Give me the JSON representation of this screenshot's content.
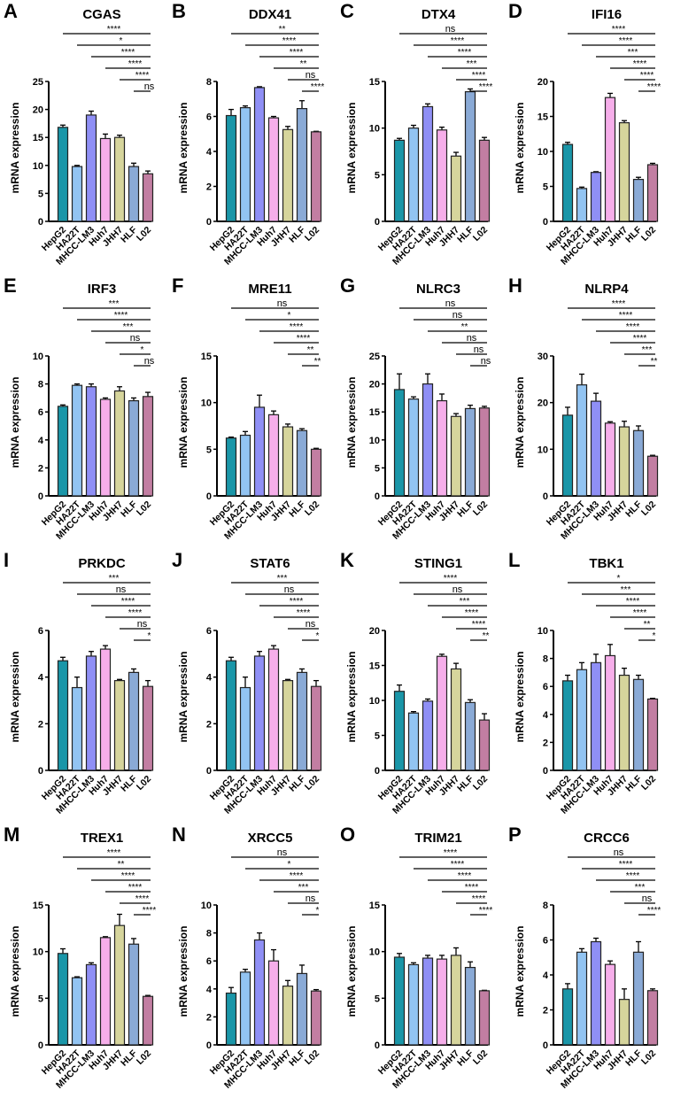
{
  "chart_data": [
    {
      "letter": "A",
      "title": "CGAS",
      "ylabel": "mRNA expression",
      "ymax": 25,
      "step": 5,
      "values": [
        16.8,
        9.8,
        19,
        14.8,
        15,
        9.8,
        8.5
      ],
      "errors": [
        0.4,
        0.2,
        0.7,
        0.8,
        0.4,
        0.6,
        0.5
      ],
      "sig": [
        "****",
        "*",
        "****",
        "****",
        "****",
        "ns"
      ]
    },
    {
      "letter": "B",
      "title": "DDX41",
      "ylabel": "mRNA expression",
      "ymax": 8,
      "step": 2,
      "values": [
        6.05,
        6.5,
        7.65,
        5.92,
        5.25,
        6.45,
        5.12
      ],
      "errors": [
        0.35,
        0.1,
        0.05,
        0.08,
        0.18,
        0.45,
        0.03
      ],
      "sig": [
        "**",
        "****",
        "****",
        "**",
        "ns",
        "****"
      ]
    },
    {
      "letter": "C",
      "title": "DTX4",
      "ylabel": "mRNA expression",
      "ymax": 15,
      "step": 5,
      "values": [
        8.7,
        10,
        12.3,
        9.8,
        7,
        13.9,
        8.7
      ],
      "errors": [
        0.2,
        0.3,
        0.3,
        0.3,
        0.4,
        0.3,
        0.3
      ],
      "sig": [
        "ns",
        "****",
        "****",
        "***",
        "****",
        "****"
      ]
    },
    {
      "letter": "D",
      "title": "IFI16",
      "ylabel": "mRNA expression",
      "ymax": 20,
      "step": 5,
      "values": [
        11,
        4.7,
        7,
        17.7,
        14.1,
        6,
        8.1
      ],
      "errors": [
        0.3,
        0.2,
        0.1,
        0.6,
        0.3,
        0.3,
        0.2
      ],
      "sig": [
        "****",
        "****",
        "***",
        "****",
        "****",
        "****"
      ]
    },
    {
      "letter": "E",
      "title": "IRF3",
      "ylabel": "mRNA expression",
      "ymax": 10,
      "step": 2,
      "values": [
        6.4,
        7.9,
        7.8,
        6.9,
        7.5,
        6.8,
        7.1
      ],
      "errors": [
        0.1,
        0.1,
        0.2,
        0.1,
        0.3,
        0.2,
        0.3
      ],
      "sig": [
        "***",
        "****",
        "***",
        "ns",
        "*",
        "ns"
      ]
    },
    {
      "letter": "F",
      "title": "MRE11",
      "ylabel": "mRNA expression",
      "ymax": 15,
      "step": 5,
      "values": [
        6.2,
        6.5,
        9.5,
        8.7,
        7.4,
        7,
        5
      ],
      "errors": [
        0.1,
        0.4,
        1.3,
        0.4,
        0.3,
        0.2,
        0.1
      ],
      "sig": [
        "ns",
        "*",
        "****",
        "****",
        "**",
        "**"
      ]
    },
    {
      "letter": "G",
      "title": "NLRC3",
      "ylabel": "mRNA expression",
      "ymax": 25,
      "step": 5,
      "values": [
        19,
        17.3,
        20,
        17,
        14.2,
        15.6,
        15.7
      ],
      "errors": [
        2.8,
        0.4,
        1.8,
        1.2,
        0.5,
        0.6,
        0.3
      ],
      "sig": [
        "ns",
        "ns",
        "**",
        "ns",
        "ns",
        "ns"
      ]
    },
    {
      "letter": "H",
      "title": "NLRP4",
      "ylabel": "mRNA expression",
      "ymax": 30,
      "step": 10,
      "values": [
        17.3,
        23.8,
        20.3,
        15.6,
        14.8,
        14,
        8.5
      ],
      "errors": [
        1.7,
        2.3,
        1.7,
        0.3,
        1.2,
        1,
        0.2
      ],
      "sig": [
        "****",
        "****",
        "****",
        "****",
        "***",
        "**"
      ]
    },
    {
      "letter": "I",
      "title": "PRKDC",
      "ylabel": "mRNA expression",
      "ymax": 6,
      "step": 2,
      "values": [
        4.7,
        3.55,
        4.9,
        5.2,
        3.85,
        4.2,
        3.6
      ],
      "errors": [
        0.15,
        0.45,
        0.2,
        0.15,
        0.05,
        0.15,
        0.25
      ],
      "sig": [
        "***",
        "ns",
        "****",
        "****",
        "ns",
        "*"
      ]
    },
    {
      "letter": "J",
      "title": "STAT6",
      "ylabel": "mRNA expression",
      "ymax": 6,
      "step": 2,
      "values": [
        4.7,
        3.55,
        4.9,
        5.2,
        3.85,
        4.2,
        3.6
      ],
      "errors": [
        0.15,
        0.45,
        0.2,
        0.15,
        0.05,
        0.15,
        0.25
      ],
      "sig": [
        "***",
        "ns",
        "****",
        "****",
        "ns",
        "*"
      ]
    },
    {
      "letter": "K",
      "title": "STING1",
      "ylabel": "mRNA expression",
      "ymax": 20,
      "step": 5,
      "values": [
        11.3,
        8.2,
        9.9,
        16.3,
        14.5,
        9.7,
        7.2
      ],
      "errors": [
        0.9,
        0.2,
        0.3,
        0.3,
        0.8,
        0.4,
        0.9
      ],
      "sig": [
        "****",
        "ns",
        "***",
        "****",
        "****",
        "**"
      ]
    },
    {
      "letter": "L",
      "title": "TBK1",
      "ylabel": "mRNA expression",
      "ymax": 10,
      "step": 2,
      "values": [
        6.4,
        7.2,
        7.7,
        8.2,
        6.8,
        6.5,
        5.1
      ],
      "errors": [
        0.4,
        0.5,
        0.6,
        0.8,
        0.5,
        0.3,
        0.05
      ],
      "sig": [
        "*",
        "***",
        "****",
        "****",
        "**",
        "*"
      ]
    },
    {
      "letter": "M",
      "title": "TREX1",
      "ylabel": "mRNA expression",
      "ymax": 15,
      "step": 5,
      "values": [
        9.8,
        7.2,
        8.6,
        11.5,
        12.8,
        10.8,
        5.2
      ],
      "errors": [
        0.5,
        0.1,
        0.2,
        0.1,
        1.2,
        0.6,
        0.1
      ],
      "sig": [
        "****",
        "**",
        "****",
        "****",
        "****",
        "****"
      ]
    },
    {
      "letter": "N",
      "title": "XRCC5",
      "ylabel": "mRNA expression",
      "ymax": 10,
      "step": 2,
      "values": [
        3.7,
        5.2,
        7.5,
        6,
        4.2,
        5.1,
        3.85
      ],
      "errors": [
        0.4,
        0.2,
        0.5,
        0.8,
        0.4,
        0.6,
        0.1
      ],
      "sig": [
        "ns",
        "*",
        "****",
        "***",
        "ns",
        "*"
      ]
    },
    {
      "letter": "O",
      "title": "TRIM21",
      "ylabel": "mRNA expression",
      "ymax": 15,
      "step": 5,
      "values": [
        9.4,
        8.6,
        9.3,
        9.2,
        9.6,
        8.3,
        5.8
      ],
      "errors": [
        0.4,
        0.2,
        0.3,
        0.4,
        0.8,
        0.6,
        0.05
      ],
      "sig": [
        "****",
        "****",
        "****",
        "****",
        "****",
        "****"
      ]
    },
    {
      "letter": "P",
      "title": "CRCC6",
      "ylabel": "mRNA expression",
      "ymax": 8,
      "step": 2,
      "values": [
        3.2,
        5.3,
        5.9,
        4.6,
        2.6,
        5.3,
        3.1
      ],
      "errors": [
        0.3,
        0.2,
        0.2,
        0.2,
        0.6,
        0.6,
        0.1
      ],
      "sig": [
        "ns",
        "****",
        "****",
        "***",
        "ns",
        "****"
      ]
    }
  ],
  "categories": [
    "HepG2",
    "HA22T",
    "MHCC-LM3",
    "Huh7",
    "JHH7",
    "HLF",
    "L02"
  ],
  "colors": [
    "#1a96a8",
    "#92c4f2",
    "#8f8ff5",
    "#f6aeea",
    "#d6d59c",
    "#8aaad6",
    "#c27ea2"
  ]
}
